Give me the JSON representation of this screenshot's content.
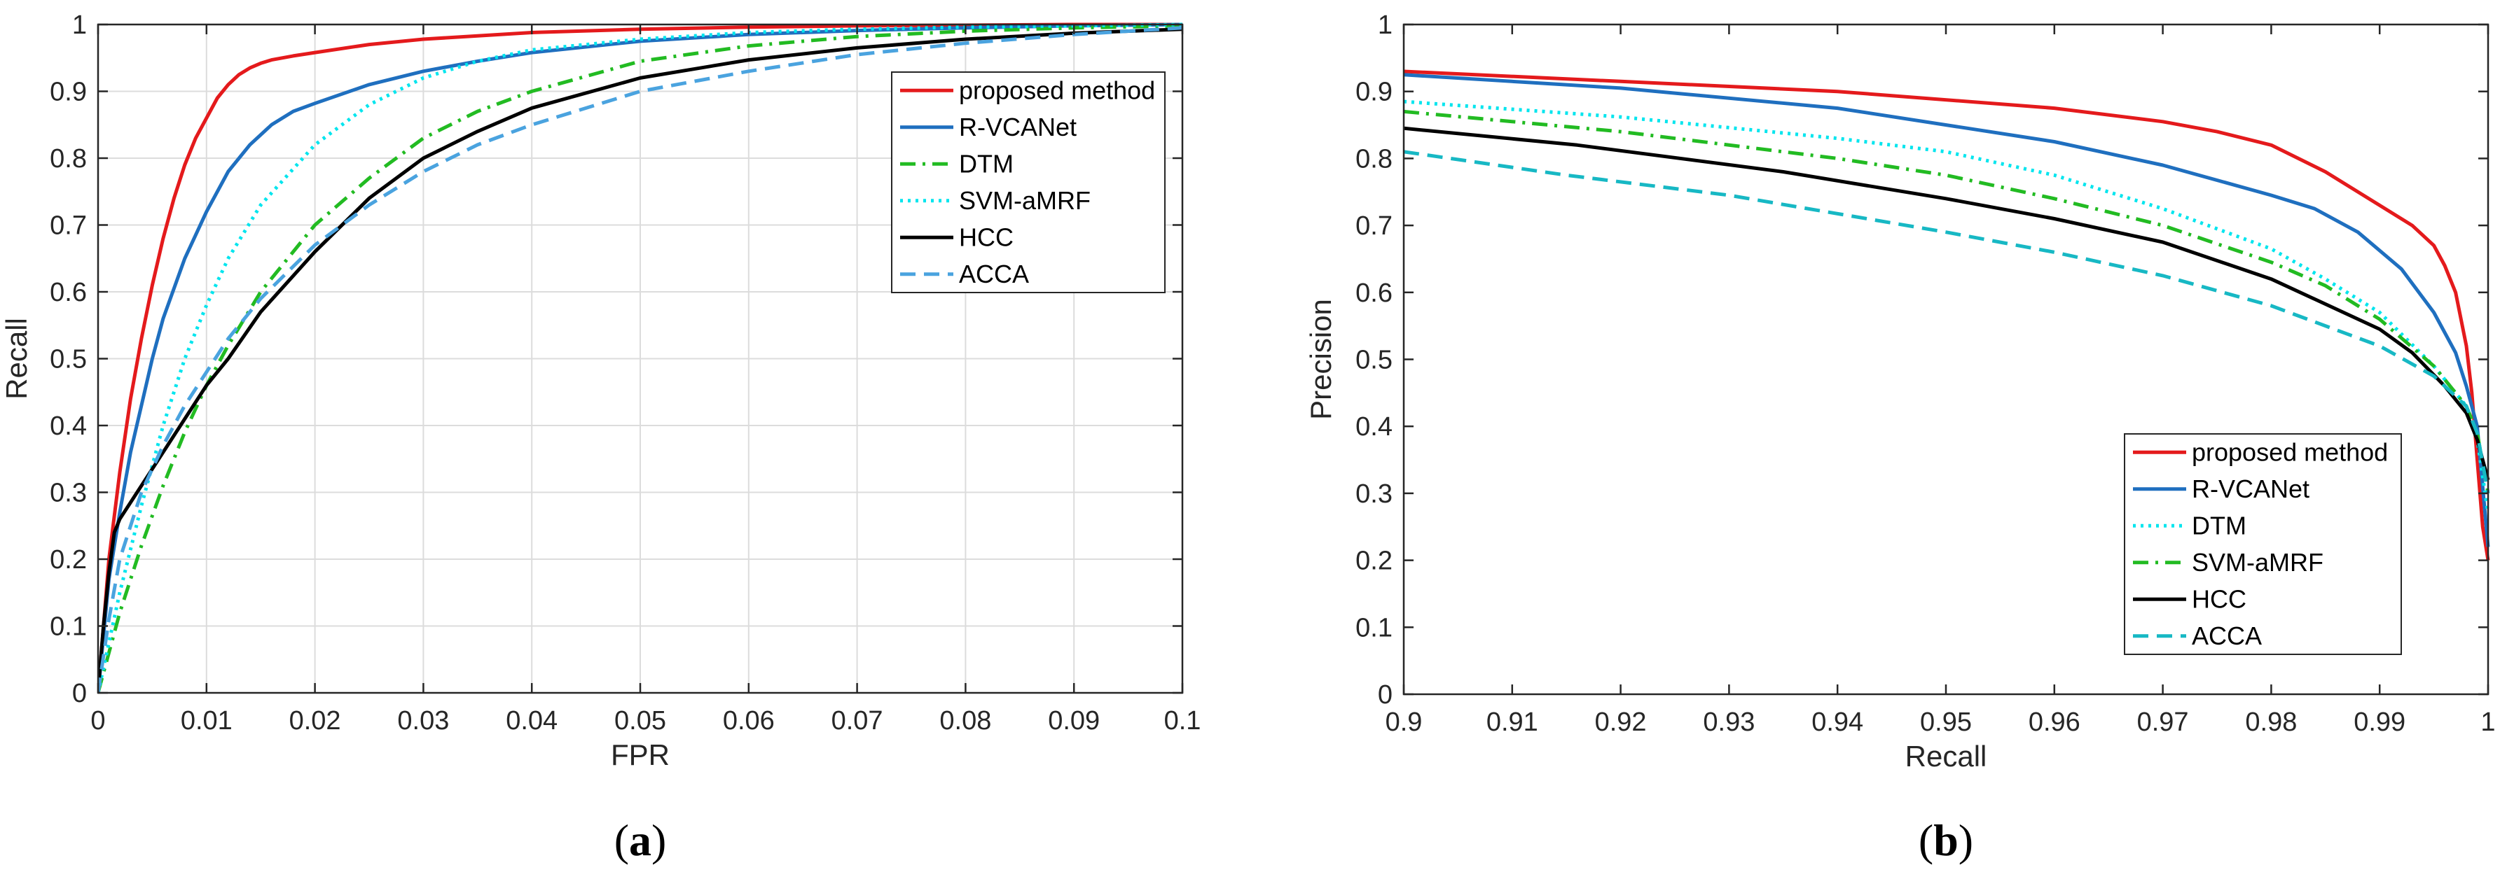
{
  "chart_data": [
    {
      "type": "line",
      "caption": "(a)",
      "caption_letter": "a",
      "title": "",
      "xlabel": "FPR",
      "ylabel": "Recall",
      "xlim": [
        0,
        0.1
      ],
      "ylim": [
        0,
        1
      ],
      "grid": true,
      "legend_position": "top-right",
      "x_ticks": [
        0,
        0.01,
        0.02,
        0.03,
        0.04,
        0.05,
        0.06,
        0.07,
        0.08,
        0.09,
        0.1
      ],
      "x_tick_labels": [
        "0",
        "0.01",
        "0.02",
        "0.03",
        "0.04",
        "0.05",
        "0.06",
        "0.07",
        "0.08",
        "0.09",
        "0.1"
      ],
      "y_ticks": [
        0,
        0.1,
        0.2,
        0.3,
        0.4,
        0.5,
        0.6,
        0.7,
        0.8,
        0.9,
        1
      ],
      "y_tick_labels": [
        "0",
        "0.1",
        "0.2",
        "0.3",
        "0.4",
        "0.5",
        "0.6",
        "0.7",
        "0.8",
        "0.9",
        "1"
      ],
      "series": [
        {
          "name": "proposed method",
          "color": "#e41a1c",
          "style": "solid",
          "x": [
            0,
            0.001,
            0.002,
            0.003,
            0.004,
            0.005,
            0.006,
            0.007,
            0.008,
            0.009,
            0.01,
            0.011,
            0.012,
            0.013,
            0.014,
            0.015,
            0.016,
            0.018,
            0.02,
            0.025,
            0.03,
            0.04,
            0.05,
            0.06,
            0.07,
            0.08,
            0.09,
            0.1
          ],
          "y": [
            0,
            0.2,
            0.33,
            0.44,
            0.53,
            0.61,
            0.68,
            0.74,
            0.79,
            0.83,
            0.86,
            0.89,
            0.91,
            0.925,
            0.935,
            0.942,
            0.947,
            0.953,
            0.958,
            0.97,
            0.978,
            0.988,
            0.993,
            0.996,
            0.998,
            0.999,
            1.0,
            1.0
          ]
        },
        {
          "name": "R-VCANet",
          "color": "#1f6fbf",
          "style": "solid",
          "x": [
            0,
            0.001,
            0.002,
            0.003,
            0.004,
            0.005,
            0.006,
            0.008,
            0.01,
            0.012,
            0.014,
            0.016,
            0.018,
            0.02,
            0.025,
            0.03,
            0.035,
            0.04,
            0.05,
            0.06,
            0.07,
            0.08,
            0.09,
            0.1
          ],
          "y": [
            0,
            0.17,
            0.27,
            0.36,
            0.43,
            0.5,
            0.56,
            0.65,
            0.72,
            0.78,
            0.82,
            0.85,
            0.87,
            0.882,
            0.91,
            0.93,
            0.945,
            0.958,
            0.975,
            0.985,
            0.991,
            0.995,
            0.998,
            1.0
          ]
        },
        {
          "name": "DTM",
          "color": "#22bb22",
          "style": "dashdot",
          "x": [
            0,
            0.002,
            0.004,
            0.006,
            0.008,
            0.01,
            0.012,
            0.015,
            0.02,
            0.025,
            0.03,
            0.035,
            0.04,
            0.05,
            0.06,
            0.07,
            0.08,
            0.09,
            0.1
          ],
          "y": [
            0,
            0.12,
            0.22,
            0.31,
            0.39,
            0.46,
            0.52,
            0.6,
            0.7,
            0.77,
            0.83,
            0.87,
            0.9,
            0.945,
            0.968,
            0.982,
            0.99,
            0.995,
            0.998
          ]
        },
        {
          "name": "SVM-aMRF",
          "color": "#00e5ee",
          "style": "dotted",
          "x": [
            0,
            0.002,
            0.004,
            0.006,
            0.008,
            0.01,
            0.012,
            0.015,
            0.02,
            0.025,
            0.03,
            0.035,
            0.04,
            0.05,
            0.06,
            0.07,
            0.08,
            0.09,
            0.1
          ],
          "y": [
            0,
            0.15,
            0.28,
            0.4,
            0.5,
            0.58,
            0.65,
            0.73,
            0.82,
            0.88,
            0.92,
            0.945,
            0.962,
            0.978,
            0.988,
            0.993,
            0.996,
            0.998,
            1.0
          ]
        },
        {
          "name": "HCC",
          "color": "#000000",
          "style": "solid",
          "x": [
            0,
            0.0005,
            0.001,
            0.0015,
            0.002,
            0.004,
            0.006,
            0.008,
            0.01,
            0.012,
            0.015,
            0.02,
            0.025,
            0.03,
            0.035,
            0.04,
            0.05,
            0.06,
            0.07,
            0.08,
            0.09,
            0.1
          ],
          "y": [
            0,
            0.1,
            0.18,
            0.24,
            0.26,
            0.31,
            0.36,
            0.41,
            0.46,
            0.5,
            0.57,
            0.66,
            0.74,
            0.8,
            0.84,
            0.875,
            0.92,
            0.947,
            0.965,
            0.978,
            0.987,
            0.993
          ]
        },
        {
          "name": "ACCA",
          "color": "#4aa3df",
          "style": "dashed",
          "x": [
            0,
            0.001,
            0.002,
            0.004,
            0.006,
            0.008,
            0.01,
            0.012,
            0.015,
            0.02,
            0.025,
            0.03,
            0.035,
            0.04,
            0.05,
            0.06,
            0.07,
            0.08,
            0.09,
            0.1
          ],
          "y": [
            0,
            0.11,
            0.2,
            0.3,
            0.37,
            0.43,
            0.48,
            0.53,
            0.59,
            0.67,
            0.73,
            0.78,
            0.82,
            0.85,
            0.9,
            0.93,
            0.955,
            0.972,
            0.985,
            0.995
          ]
        }
      ]
    },
    {
      "type": "line",
      "caption": "(b)",
      "caption_letter": "b",
      "title": "",
      "xlabel": "Recall",
      "ylabel": "Precision",
      "xlim": [
        0.9,
        1
      ],
      "ylim": [
        0,
        1
      ],
      "grid": false,
      "legend_position": "bottom-right",
      "x_ticks": [
        0.9,
        0.91,
        0.92,
        0.93,
        0.94,
        0.95,
        0.96,
        0.97,
        0.98,
        0.99,
        1
      ],
      "x_tick_labels": [
        "0.9",
        "0.91",
        "0.92",
        "0.93",
        "0.94",
        "0.95",
        "0.96",
        "0.97",
        "0.98",
        "0.99",
        "1"
      ],
      "y_ticks": [
        0,
        0.1,
        0.2,
        0.3,
        0.4,
        0.5,
        0.6,
        0.7,
        0.8,
        0.9,
        1
      ],
      "y_tick_labels": [
        "0",
        "0.1",
        "0.2",
        "0.3",
        "0.4",
        "0.5",
        "0.6",
        "0.7",
        "0.8",
        "0.9",
        "1"
      ],
      "series": [
        {
          "name": "proposed method",
          "color": "#e41a1c",
          "style": "solid",
          "x": [
            0.9,
            0.92,
            0.94,
            0.96,
            0.97,
            0.975,
            0.98,
            0.985,
            0.99,
            0.993,
            0.995,
            0.996,
            0.997,
            0.998,
            0.9985,
            0.999,
            0.9995,
            1.0
          ],
          "y": [
            0.93,
            0.915,
            0.9,
            0.875,
            0.855,
            0.84,
            0.82,
            0.78,
            0.73,
            0.7,
            0.67,
            0.64,
            0.6,
            0.52,
            0.45,
            0.35,
            0.25,
            0.2
          ]
        },
        {
          "name": "R-VCANet",
          "color": "#1f6fbf",
          "style": "solid",
          "x": [
            0.9,
            0.92,
            0.94,
            0.96,
            0.97,
            0.98,
            0.984,
            0.988,
            0.992,
            0.995,
            0.997,
            0.998,
            0.999,
            1.0
          ],
          "y": [
            0.925,
            0.905,
            0.875,
            0.825,
            0.79,
            0.745,
            0.725,
            0.69,
            0.635,
            0.57,
            0.51,
            0.46,
            0.4,
            0.22
          ]
        },
        {
          "name": "DTM",
          "color": "#00e5ee",
          "style": "dotted",
          "x": [
            0.9,
            0.92,
            0.94,
            0.95,
            0.96,
            0.97,
            0.98,
            0.985,
            0.99,
            0.995,
            0.998,
            0.999,
            1.0
          ],
          "y": [
            0.885,
            0.862,
            0.83,
            0.81,
            0.775,
            0.725,
            0.665,
            0.62,
            0.57,
            0.49,
            0.43,
            0.38,
            0.27
          ]
        },
        {
          "name": "SVM-aMRF",
          "color": "#22bb22",
          "style": "dashdot",
          "x": [
            0.9,
            0.92,
            0.94,
            0.95,
            0.96,
            0.97,
            0.98,
            0.985,
            0.99,
            0.995,
            0.998,
            0.999,
            1.0
          ],
          "y": [
            0.87,
            0.84,
            0.8,
            0.775,
            0.74,
            0.7,
            0.645,
            0.61,
            0.56,
            0.49,
            0.43,
            0.39,
            0.3
          ]
        },
        {
          "name": "HCC",
          "color": "#000000",
          "style": "solid",
          "x": [
            0.9,
            0.916,
            0.935,
            0.95,
            0.96,
            0.97,
            0.98,
            0.99,
            0.993,
            0.996,
            0.998,
            0.999,
            1.0
          ],
          "y": [
            0.845,
            0.82,
            0.78,
            0.74,
            0.71,
            0.675,
            0.62,
            0.545,
            0.51,
            0.46,
            0.42,
            0.38,
            0.32
          ]
        },
        {
          "name": "ACCA",
          "color": "#17b8c4",
          "style": "dashed",
          "x": [
            0.9,
            0.915,
            0.93,
            0.95,
            0.96,
            0.97,
            0.98,
            0.99,
            0.995,
            0.998,
            0.999,
            1.0
          ],
          "y": [
            0.81,
            0.775,
            0.745,
            0.69,
            0.66,
            0.625,
            0.58,
            0.52,
            0.475,
            0.43,
            0.39,
            0.3
          ]
        }
      ]
    }
  ]
}
